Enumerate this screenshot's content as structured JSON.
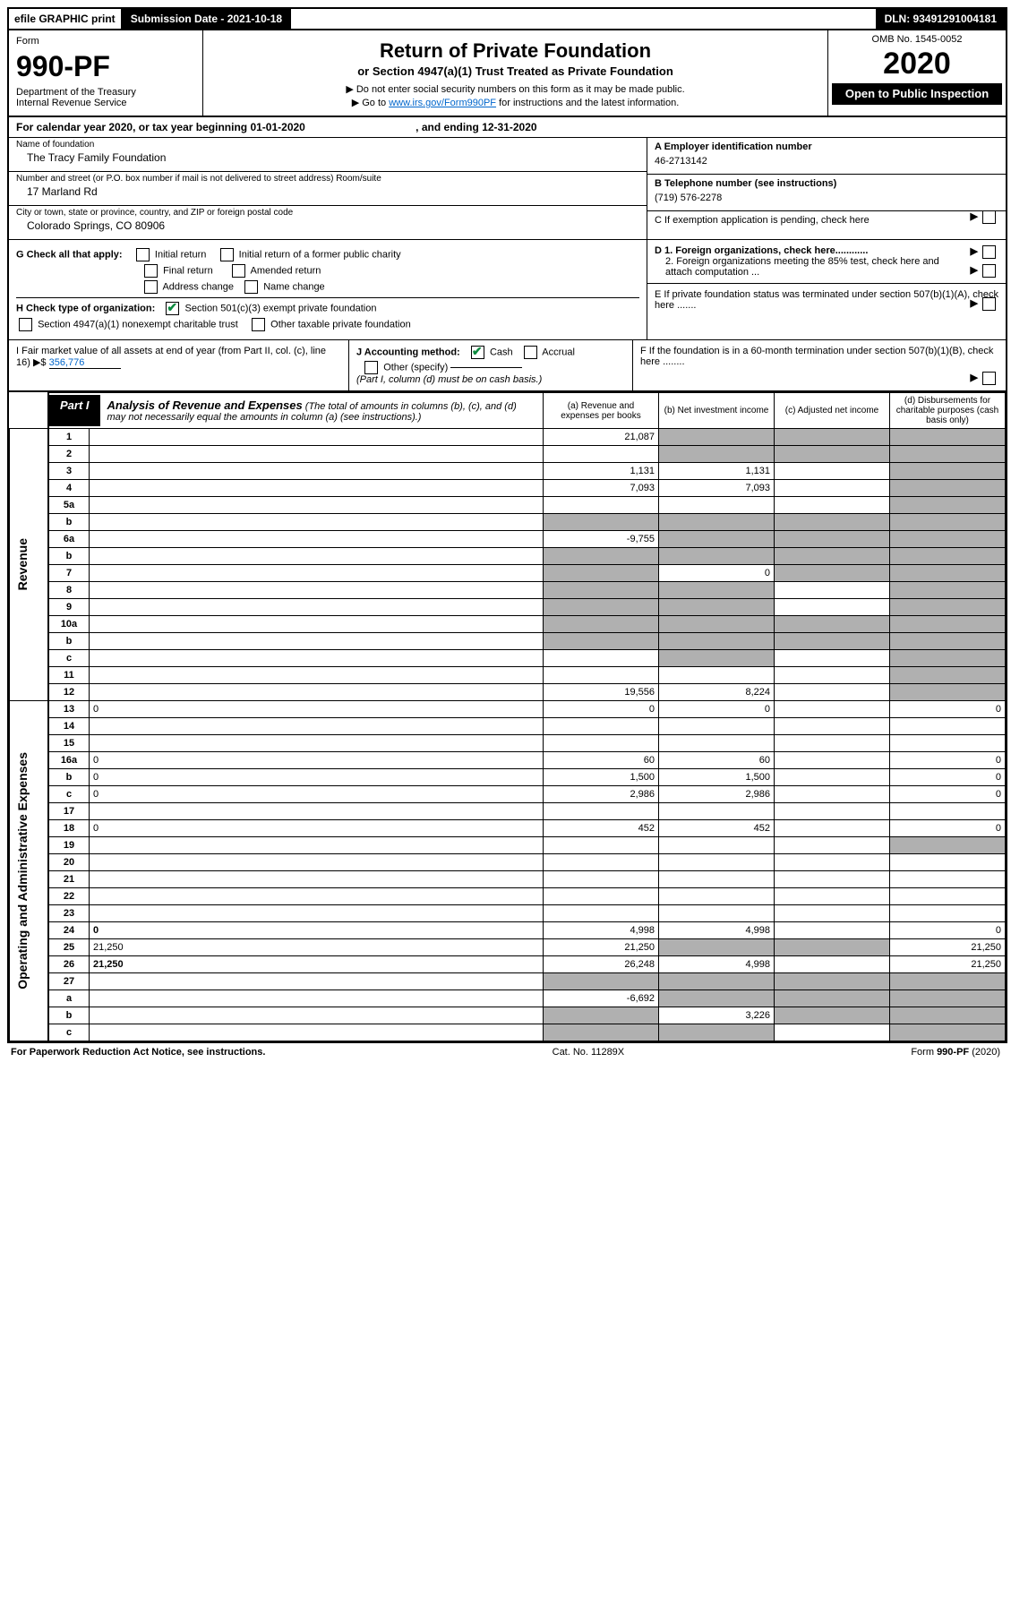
{
  "topbar": {
    "efile": "efile GRAPHIC print",
    "submission": "Submission Date - 2021-10-18",
    "dln": "DLN: 93491291004181"
  },
  "header": {
    "form_label": "Form",
    "form_number": "990-PF",
    "dept": "Department of the Treasury",
    "irs": "Internal Revenue Service",
    "title": "Return of Private Foundation",
    "subtitle": "or Section 4947(a)(1) Trust Treated as Private Foundation",
    "notice1": "▶ Do not enter social security numbers on this form as it may be made public.",
    "notice2_pre": "▶ Go to ",
    "notice2_link": "www.irs.gov/Form990PF",
    "notice2_post": " for instructions and the latest information.",
    "omb": "OMB No. 1545-0052",
    "year": "2020",
    "open": "Open to Public Inspection"
  },
  "calyear": {
    "text_pre": "For calendar year 2020, or tax year beginning ",
    "begin": "01-01-2020",
    "mid": " , and ending ",
    "end": "12-31-2020"
  },
  "identity": {
    "name_label": "Name of foundation",
    "name": "The Tracy Family Foundation",
    "addr_label": "Number and street (or P.O. box number if mail is not delivered to street address)        Room/suite",
    "addr": "17 Marland Rd",
    "city_label": "City or town, state or province, country, and ZIP or foreign postal code",
    "city": "Colorado Springs, CO  80906"
  },
  "right": {
    "a_label": "A Employer identification number",
    "a_val": "46-2713142",
    "b_label": "B Telephone number (see instructions)",
    "b_val": "(719) 576-2278",
    "c_label": "C If exemption application is pending, check here",
    "d1": "D 1. Foreign organizations, check here............",
    "d2": "2. Foreign organizations meeting the 85% test, check here and attach computation ...",
    "e": "E  If private foundation status was terminated under section 507(b)(1)(A), check here .......",
    "f": "F  If the foundation is in a 60-month termination under section 507(b)(1)(B), check here ........"
  },
  "g": {
    "label": "G Check all that apply:",
    "initial": "Initial return",
    "initial_former": "Initial return of a former public charity",
    "final": "Final return",
    "amended": "Amended return",
    "address": "Address change",
    "name_change": "Name change"
  },
  "h": {
    "label": "H Check type of organization:",
    "s501": "Section 501(c)(3) exempt private foundation",
    "s4947": "Section 4947(a)(1) nonexempt charitable trust",
    "other": "Other taxable private foundation"
  },
  "i": {
    "label": "I Fair market value of all assets at end of year (from Part II, col. (c), line 16) ▶$",
    "value": "356,776"
  },
  "j": {
    "label": "J Accounting method:",
    "cash": "Cash",
    "accrual": "Accrual",
    "other": "Other (specify)",
    "note": "(Part I, column (d) must be on cash basis.)"
  },
  "part1": {
    "label": "Part I",
    "title": "Analysis of Revenue and Expenses",
    "title_note": " (The total of amounts in columns (b), (c), and (d) may not necessarily equal the amounts in column (a) (see instructions).)",
    "col_a": "(a)    Revenue and expenses per books",
    "col_b": "(b)   Net investment income",
    "col_c": "(c)   Adjusted net income",
    "col_d": "(d)   Disbursements for charitable purposes (cash basis only)"
  },
  "sides": {
    "revenue": "Revenue",
    "expenses": "Operating and Administrative Expenses"
  },
  "rows": {
    "1": {
      "n": "1",
      "d": "",
      "a": "21,087",
      "b": "",
      "c": "",
      "sb": true,
      "sc": true,
      "sd": true
    },
    "2": {
      "n": "2",
      "d": "",
      "a": "",
      "b": "",
      "c": "",
      "sb": true,
      "sc": true,
      "sd": true
    },
    "3": {
      "n": "3",
      "d": "",
      "a": "1,131",
      "b": "1,131",
      "c": "",
      "sd": true
    },
    "4": {
      "n": "4",
      "d": "",
      "a": "7,093",
      "b": "7,093",
      "c": "",
      "sd": true
    },
    "5a": {
      "n": "5a",
      "d": "",
      "a": "",
      "b": "",
      "c": "",
      "sd": true
    },
    "5b": {
      "n": "b",
      "d": "",
      "a": "",
      "b": "",
      "c": "",
      "sa": true,
      "sb": true,
      "sc": true,
      "sd": true
    },
    "6a": {
      "n": "6a",
      "d": "",
      "a": "-9,755",
      "b": "",
      "c": "",
      "sb": true,
      "sc": true,
      "sd": true
    },
    "6b": {
      "n": "b",
      "d": "",
      "a": "",
      "b": "",
      "c": "",
      "sa": true,
      "sb": true,
      "sc": true,
      "sd": true
    },
    "7": {
      "n": "7",
      "d": "",
      "a": "",
      "b": "0",
      "c": "",
      "sa": true,
      "sc": true,
      "sd": true
    },
    "8": {
      "n": "8",
      "d": "",
      "a": "",
      "b": "",
      "c": "",
      "sa": true,
      "sb": true,
      "sd": true
    },
    "9": {
      "n": "9",
      "d": "",
      "a": "",
      "b": "",
      "c": "",
      "sa": true,
      "sb": true,
      "sd": true
    },
    "10a": {
      "n": "10a",
      "d": "",
      "a": "",
      "b": "",
      "c": "",
      "sa": true,
      "sb": true,
      "sc": true,
      "sd": true
    },
    "10b": {
      "n": "b",
      "d": "",
      "a": "",
      "b": "",
      "c": "",
      "sa": true,
      "sb": true,
      "sc": true,
      "sd": true
    },
    "10c": {
      "n": "c",
      "d": "",
      "a": "",
      "b": "",
      "c": "",
      "sb": true,
      "sd": true
    },
    "11": {
      "n": "11",
      "d": "",
      "a": "",
      "b": "",
      "c": "",
      "sd": true
    },
    "12": {
      "n": "12",
      "d": "",
      "a": "19,556",
      "b": "8,224",
      "c": "",
      "sd": true,
      "bold": true
    },
    "13": {
      "n": "13",
      "d": "0",
      "a": "0",
      "b": "0",
      "c": ""
    },
    "14": {
      "n": "14",
      "d": "",
      "a": "",
      "b": "",
      "c": ""
    },
    "15": {
      "n": "15",
      "d": "",
      "a": "",
      "b": "",
      "c": ""
    },
    "16a": {
      "n": "16a",
      "d": "0",
      "a": "60",
      "b": "60",
      "c": ""
    },
    "16b": {
      "n": "b",
      "d": "0",
      "a": "1,500",
      "b": "1,500",
      "c": ""
    },
    "16c": {
      "n": "c",
      "d": "0",
      "a": "2,986",
      "b": "2,986",
      "c": ""
    },
    "17": {
      "n": "17",
      "d": "",
      "a": "",
      "b": "",
      "c": ""
    },
    "18": {
      "n": "18",
      "d": "0",
      "a": "452",
      "b": "452",
      "c": ""
    },
    "19": {
      "n": "19",
      "d": "",
      "a": "",
      "b": "",
      "c": "",
      "sd": true
    },
    "20": {
      "n": "20",
      "d": "",
      "a": "",
      "b": "",
      "c": ""
    },
    "21": {
      "n": "21",
      "d": "",
      "a": "",
      "b": "",
      "c": ""
    },
    "22": {
      "n": "22",
      "d": "",
      "a": "",
      "b": "",
      "c": ""
    },
    "23": {
      "n": "23",
      "d": "",
      "a": "",
      "b": "",
      "c": ""
    },
    "24": {
      "n": "24",
      "d": "0",
      "a": "4,998",
      "b": "4,998",
      "c": "",
      "bold": true
    },
    "25": {
      "n": "25",
      "d": "21,250",
      "a": "21,250",
      "b": "",
      "c": "",
      "sb": true,
      "sc": true
    },
    "26": {
      "n": "26",
      "d": "21,250",
      "a": "26,248",
      "b": "4,998",
      "c": "",
      "bold": true
    },
    "27": {
      "n": "27",
      "d": "",
      "a": "",
      "b": "",
      "c": "",
      "sa": true,
      "sb": true,
      "sc": true,
      "sd": true
    },
    "27a": {
      "n": "a",
      "d": "",
      "a": "-6,692",
      "b": "",
      "c": "",
      "sb": true,
      "sc": true,
      "sd": true,
      "bold": true
    },
    "27b": {
      "n": "b",
      "d": "",
      "a": "",
      "b": "3,226",
      "c": "",
      "sa": true,
      "sc": true,
      "sd": true,
      "bold": true
    },
    "27c": {
      "n": "c",
      "d": "",
      "a": "",
      "b": "",
      "c": "",
      "sa": true,
      "sb": true,
      "sd": true,
      "bold": true
    }
  },
  "footer": {
    "left": "For Paperwork Reduction Act Notice, see instructions.",
    "mid": "Cat. No. 11289X",
    "right": "Form 990-PF (2020)"
  }
}
